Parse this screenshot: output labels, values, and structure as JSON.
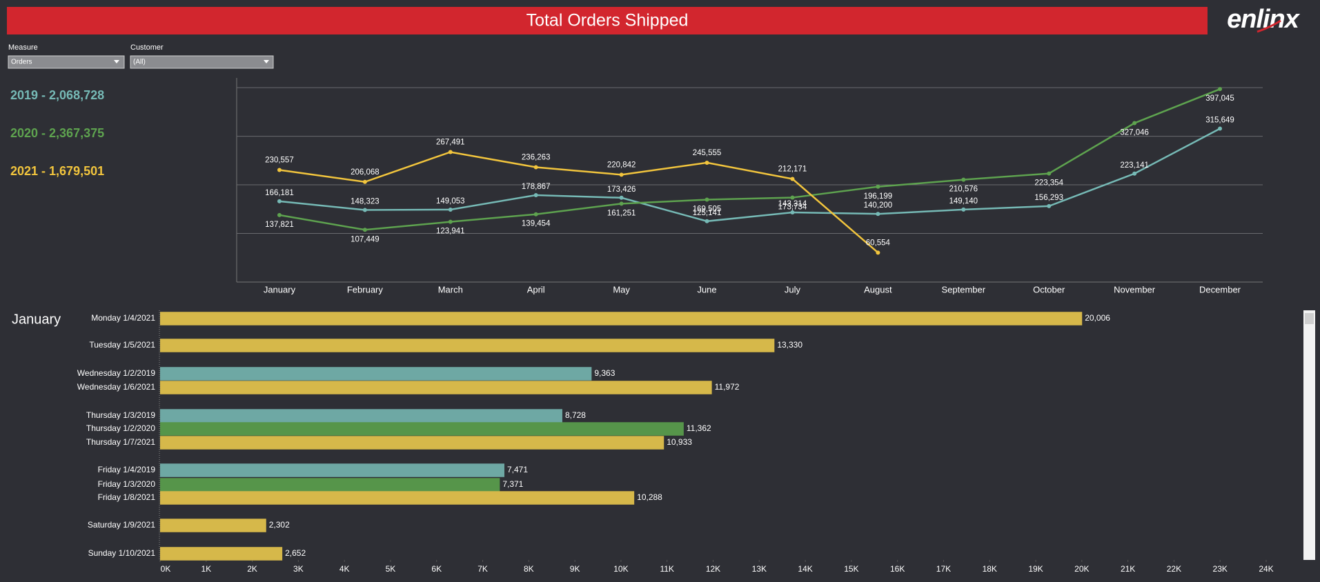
{
  "header": {
    "title": "Total Orders Shipped",
    "logo": "enlinx"
  },
  "filters": [
    {
      "label": "Measure",
      "value": "Orders"
    },
    {
      "label": "Customer",
      "value": "(All)"
    }
  ],
  "chart_data": [
    {
      "type": "line",
      "categories": [
        "January",
        "February",
        "March",
        "April",
        "May",
        "June",
        "July",
        "August",
        "September",
        "October",
        "November",
        "December"
      ],
      "ylim": [
        0,
        420000
      ],
      "yticks": [
        0,
        100000,
        200000,
        300000,
        400000
      ],
      "grid": true,
      "series": [
        {
          "name": "2019 - 2,068,728",
          "color": "#76bab6",
          "values": [
            166181,
            148323,
            149053,
            178867,
            173426,
            125141,
            143314,
            140200,
            149140,
            156293,
            223141,
            315649
          ],
          "value_labels": [
            "166,181",
            "148,323",
            "149,053",
            "178,867",
            "173,426",
            "125,141",
            "143,314",
            "140,200",
            "149,140",
            "156,293",
            "223,141",
            "315,649"
          ]
        },
        {
          "name": "2020 - 2,367,375",
          "color": "#5ea34f",
          "values": [
            137821,
            107449,
            123941,
            139454,
            161251,
            169505,
            173734,
            196199,
            210576,
            223354,
            327046,
            397045
          ],
          "value_labels": [
            "137,821",
            "107,449",
            "123,941",
            "139,454",
            "161,251",
            "169,505",
            "173,734",
            "196,199",
            "210,576",
            "223,354",
            "327,046",
            "397,045"
          ]
        },
        {
          "name": "2021 - 1,679,501",
          "color": "#f2c53d",
          "values": [
            230557,
            206068,
            267491,
            236263,
            220842,
            245555,
            212171,
            60554,
            null,
            null,
            null,
            null
          ],
          "value_labels": [
            "230,557",
            "206,068",
            "267,491",
            "236,263",
            "220,842",
            "245,555",
            "212,171",
            "60,554",
            null,
            null,
            null,
            null
          ]
        }
      ]
    },
    {
      "type": "barh",
      "title": "January",
      "categories": [
        "Monday 1/4/2021",
        "Tuesday 1/5/2021",
        "Wednesday 1/2/2019",
        "Wednesday 1/6/2021",
        "Thursday 1/3/2019",
        "Thursday 1/2/2020",
        "Thursday 1/7/2021",
        "Friday 1/4/2019",
        "Friday 1/3/2020",
        "Friday 1/8/2021",
        "Saturday 1/9/2021",
        "Sunday 1/10/2021"
      ],
      "values": [
        20006,
        13330,
        9363,
        11972,
        8728,
        11362,
        10933,
        7471,
        7371,
        10288,
        2302,
        2652
      ],
      "value_labels": [
        "20,006",
        "13,330",
        "9,363",
        "11,972",
        "8,728",
        "11,362",
        "10,933",
        "7,471",
        "7,371",
        "10,288",
        "2,302",
        "2,652"
      ],
      "colors": [
        "#d6b84a",
        "#d6b84a",
        "#6ea8a4",
        "#d6b84a",
        "#6ea8a4",
        "#56954a",
        "#d6b84a",
        "#6ea8a4",
        "#56954a",
        "#d6b84a",
        "#d6b84a",
        "#d6b84a"
      ],
      "xlim": [
        0,
        24000
      ],
      "xticks": [
        {
          "value": 0,
          "label": "0K"
        },
        {
          "value": 1000,
          "label": "1K"
        },
        {
          "value": 2000,
          "label": "2K"
        },
        {
          "value": 3000,
          "label": "3K"
        },
        {
          "value": 4000,
          "label": "4K"
        },
        {
          "value": 5000,
          "label": "5K"
        },
        {
          "value": 6000,
          "label": "6K"
        },
        {
          "value": 7000,
          "label": "7K"
        },
        {
          "value": 8000,
          "label": "8K"
        },
        {
          "value": 9000,
          "label": "9K"
        },
        {
          "value": 10000,
          "label": "10K"
        },
        {
          "value": 11000,
          "label": "11K"
        },
        {
          "value": 12000,
          "label": "12K"
        },
        {
          "value": 13000,
          "label": "13K"
        },
        {
          "value": 14000,
          "label": "14K"
        },
        {
          "value": 15000,
          "label": "15K"
        },
        {
          "value": 16000,
          "label": "16K"
        },
        {
          "value": 17000,
          "label": "17K"
        },
        {
          "value": 18000,
          "label": "18K"
        },
        {
          "value": 19000,
          "label": "19K"
        },
        {
          "value": 20000,
          "label": "20K"
        },
        {
          "value": 21000,
          "label": "21K"
        },
        {
          "value": 22000,
          "label": "22K"
        },
        {
          "value": 23000,
          "label": "23K"
        },
        {
          "value": 24000,
          "label": "24K"
        }
      ]
    }
  ]
}
